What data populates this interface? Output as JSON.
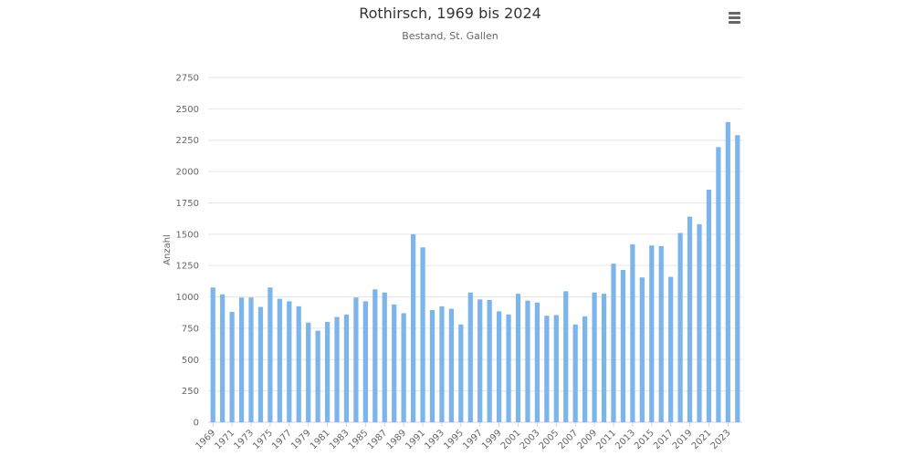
{
  "chart_data": {
    "type": "bar",
    "title": "Rothirsch, 1969 bis 2024",
    "subtitle": "Bestand, St. Gallen",
    "ylabel": "Anzahl",
    "xlabel": "",
    "ylim": [
      0,
      2750
    ],
    "yticks": [
      0,
      250,
      500,
      750,
      1000,
      1250,
      1500,
      1750,
      2000,
      2250,
      2500,
      2750
    ],
    "grid": "horizontal",
    "legend": "none",
    "bar_color": "#7cb5ec",
    "categories": [
      "1969",
      "1970",
      "1971",
      "1972",
      "1973",
      "1974",
      "1975",
      "1976",
      "1977",
      "1978",
      "1979",
      "1980",
      "1981",
      "1982",
      "1983",
      "1984",
      "1985",
      "1986",
      "1987",
      "1988",
      "1989",
      "1990",
      "1991",
      "1992",
      "1993",
      "1994",
      "1995",
      "1996",
      "1997",
      "1998",
      "1999",
      "2000",
      "2001",
      "2002",
      "2003",
      "2004",
      "2005",
      "2006",
      "2007",
      "2008",
      "2009",
      "2010",
      "2011",
      "2012",
      "2013",
      "2014",
      "2015",
      "2016",
      "2017",
      "2018",
      "2019",
      "2020",
      "2021",
      "2022",
      "2023",
      "2024"
    ],
    "xtick_labels": [
      "1969",
      "1971",
      "1973",
      "1975",
      "1977",
      "1979",
      "1981",
      "1983",
      "1985",
      "1987",
      "1989",
      "1991",
      "1993",
      "1995",
      "1997",
      "1999",
      "2001",
      "2003",
      "2005",
      "2007",
      "2009",
      "2011",
      "2013",
      "2015",
      "2017",
      "2019",
      "2021",
      "2023"
    ],
    "values": [
      1075,
      1020,
      880,
      995,
      995,
      920,
      1075,
      985,
      965,
      925,
      795,
      730,
      800,
      840,
      860,
      995,
      965,
      1060,
      1035,
      940,
      870,
      1500,
      1395,
      895,
      925,
      905,
      780,
      1035,
      980,
      975,
      885,
      860,
      1025,
      970,
      955,
      850,
      855,
      1045,
      780,
      845,
      1035,
      1025,
      1265,
      1215,
      1420,
      1155,
      1410,
      1405,
      1160,
      1510,
      1640,
      1580,
      1855,
      2195,
      2395,
      2290
    ]
  }
}
